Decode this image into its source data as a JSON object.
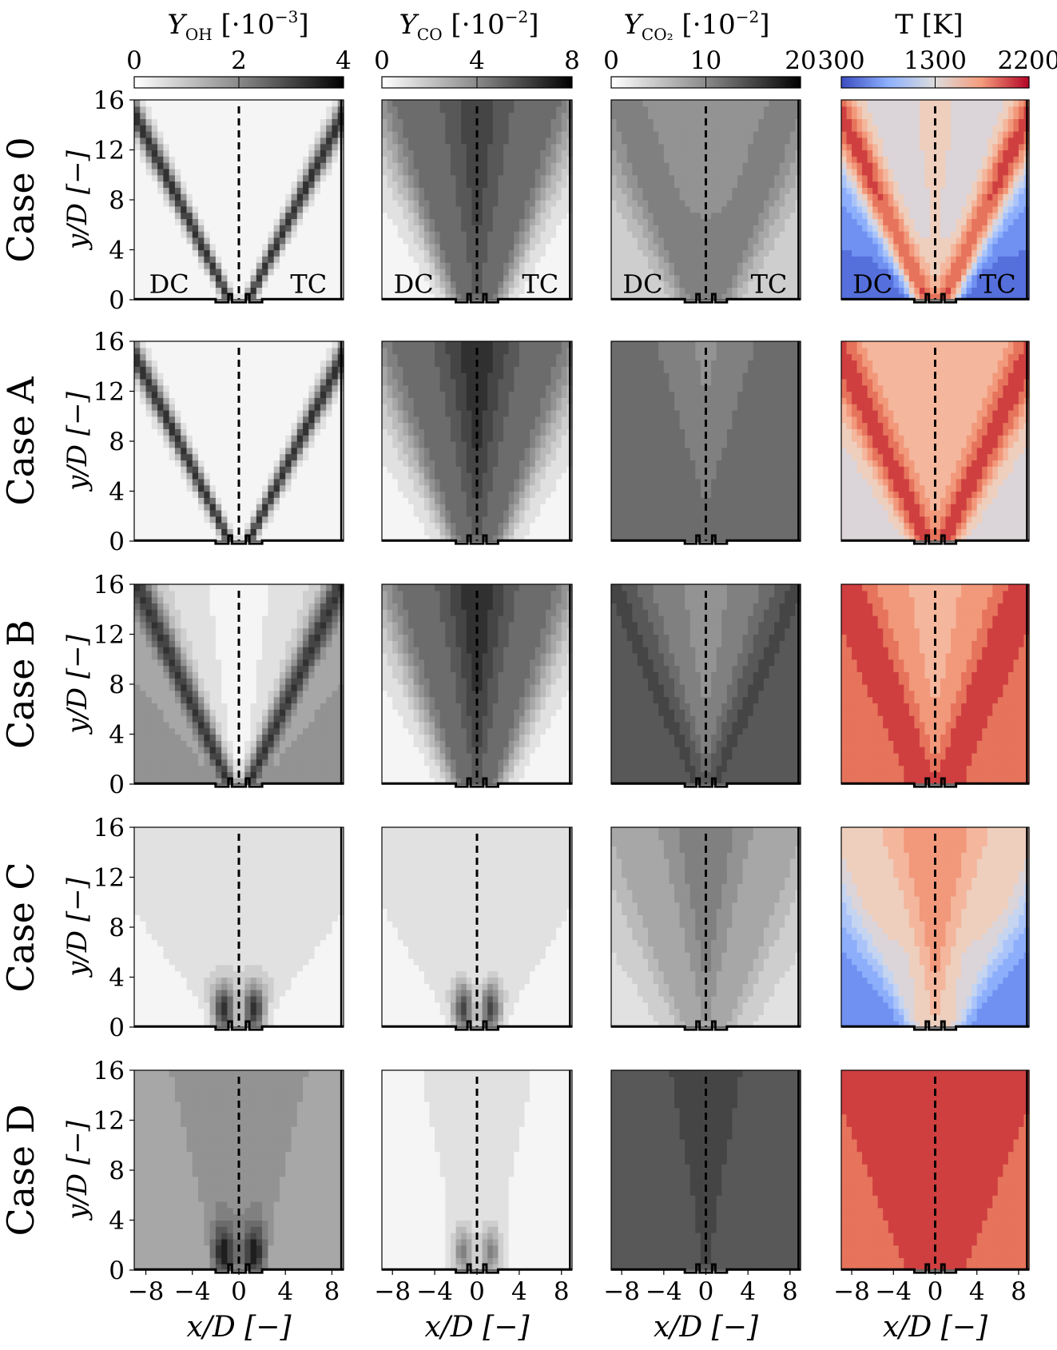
{
  "columns": [
    {
      "key": "OH",
      "title_main": "Y",
      "title_sub": "OH",
      "title_unit": "[·10",
      "title_exp": "−3",
      "title_close": "]",
      "ticks": [
        "0",
        "2",
        "4"
      ],
      "cmap": "gray",
      "range": [
        0,
        4
      ]
    },
    {
      "key": "CO",
      "title_main": "Y",
      "title_sub": "CO",
      "title_unit": "[·10",
      "title_exp": "−2",
      "title_close": "]",
      "ticks": [
        "0",
        "4",
        "8"
      ],
      "cmap": "gray",
      "range": [
        0,
        8
      ]
    },
    {
      "key": "CO2",
      "title_main": "Y",
      "title_sub": "CO₂",
      "title_unit": "[·10",
      "title_exp": "−2",
      "title_close": "]",
      "ticks": [
        "0",
        "10",
        "20"
      ],
      "cmap": "gray",
      "range": [
        0,
        20
      ]
    },
    {
      "key": "T",
      "title_main": "T [K]",
      "title_sub": "",
      "title_unit": "",
      "title_exp": "",
      "title_close": "",
      "ticks": [
        "300",
        "1300",
        "2200"
      ],
      "cmap": "coolwarm",
      "range": [
        300,
        2200
      ]
    }
  ],
  "rows": [
    {
      "label": "Case 0"
    },
    {
      "label": "Case A"
    },
    {
      "label": "Case B"
    },
    {
      "label": "Case C"
    },
    {
      "label": "Case D"
    }
  ],
  "ylabel": "y/D [−]",
  "xlabel": "x/D [−]",
  "region_labels": {
    "left": "DC",
    "right": "TC"
  },
  "colors": {
    "coolwarm_low": "#3b4cc0",
    "coolwarm_mid": "#dddddd",
    "coolwarm_high": "#b40426",
    "gray_low": "#f5f5f5",
    "gray_high": "#000000"
  },
  "chart_data": {
    "type": "heatmap",
    "layout": "5 rows × 4 columns of contour maps",
    "x_ticks": [
      -8,
      -4,
      0,
      4,
      8
    ],
    "x_tick_labels": [
      "−8",
      "−4",
      "0",
      "4",
      "8"
    ],
    "y_ticks": [
      0,
      4,
      8,
      12,
      16
    ],
    "y_tick_labels": [
      "0",
      "4",
      "8",
      "12",
      "16"
    ],
    "xlim": [
      -9,
      9
    ],
    "ylim": [
      0,
      16
    ],
    "centerline_x": 0,
    "fields": {
      "case0": {
        "OH": "thin peaks along V-shaped flame fronts",
        "CO": "core max ~6",
        "CO2": "~9 core",
        "T": "max ~2100 on fronts, ~300 far field"
      },
      "caseA": {
        "OH": "thin V-shaped fronts",
        "CO": "core max ~7",
        "CO2": "~11 background",
        "T": "~1500 background, ~2100 fronts"
      },
      "caseB": {
        "OH": "~1.8 background",
        "CO": "core max ~7",
        "CO2": "~13 background",
        "T": "~1900 background"
      },
      "caseC": {
        "OH": "localized near nozzle ~3",
        "CO": "localized near nozzle",
        "CO2": "~8 core",
        "T": "cold coflow ~600, hot core ~1700"
      },
      "caseD": {
        "OH": "~1.2 background, peaks near nozzle",
        "CO": "low except near nozzle",
        "CO2": "~14 background",
        "T": "~1900 background, ~2100 core"
      }
    }
  }
}
